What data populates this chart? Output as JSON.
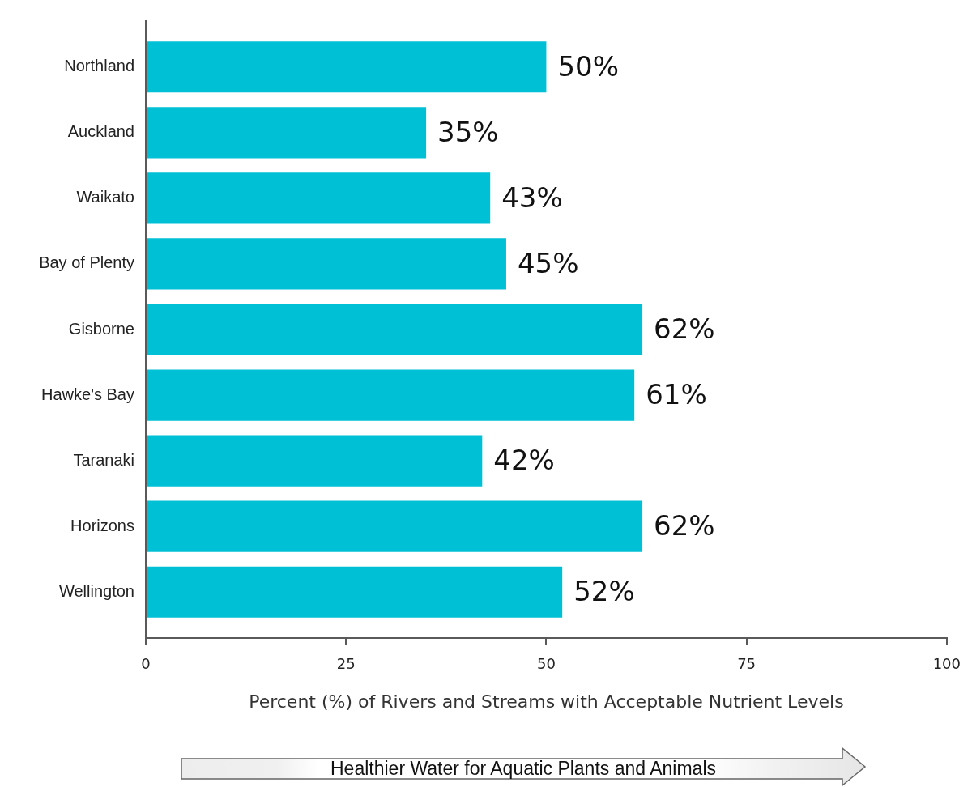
{
  "chart_data": {
    "type": "bar",
    "orientation": "horizontal",
    "categories": [
      "Northland",
      "Auckland",
      "Waikato",
      "Bay of Plenty",
      "Gisborne",
      "Hawke's Bay",
      "Taranaki",
      "Horizons",
      "Wellington"
    ],
    "values": [
      50,
      35,
      43,
      45,
      62,
      61,
      42,
      62,
      52
    ],
    "color": "#00c0d6",
    "value_labels": [
      "50%",
      "35%",
      "43%",
      "45%",
      "62%",
      "61%",
      "42%",
      "62%",
      "52%"
    ],
    "xlabel": "Percent (%) of Rivers and Streams with Acceptable Nutrient Levels",
    "xlim": [
      0,
      100
    ],
    "xticks": [
      0,
      25,
      50,
      75,
      100
    ],
    "annotations": [
      "Healthier Water for Aquatic Plants and Animals"
    ]
  }
}
